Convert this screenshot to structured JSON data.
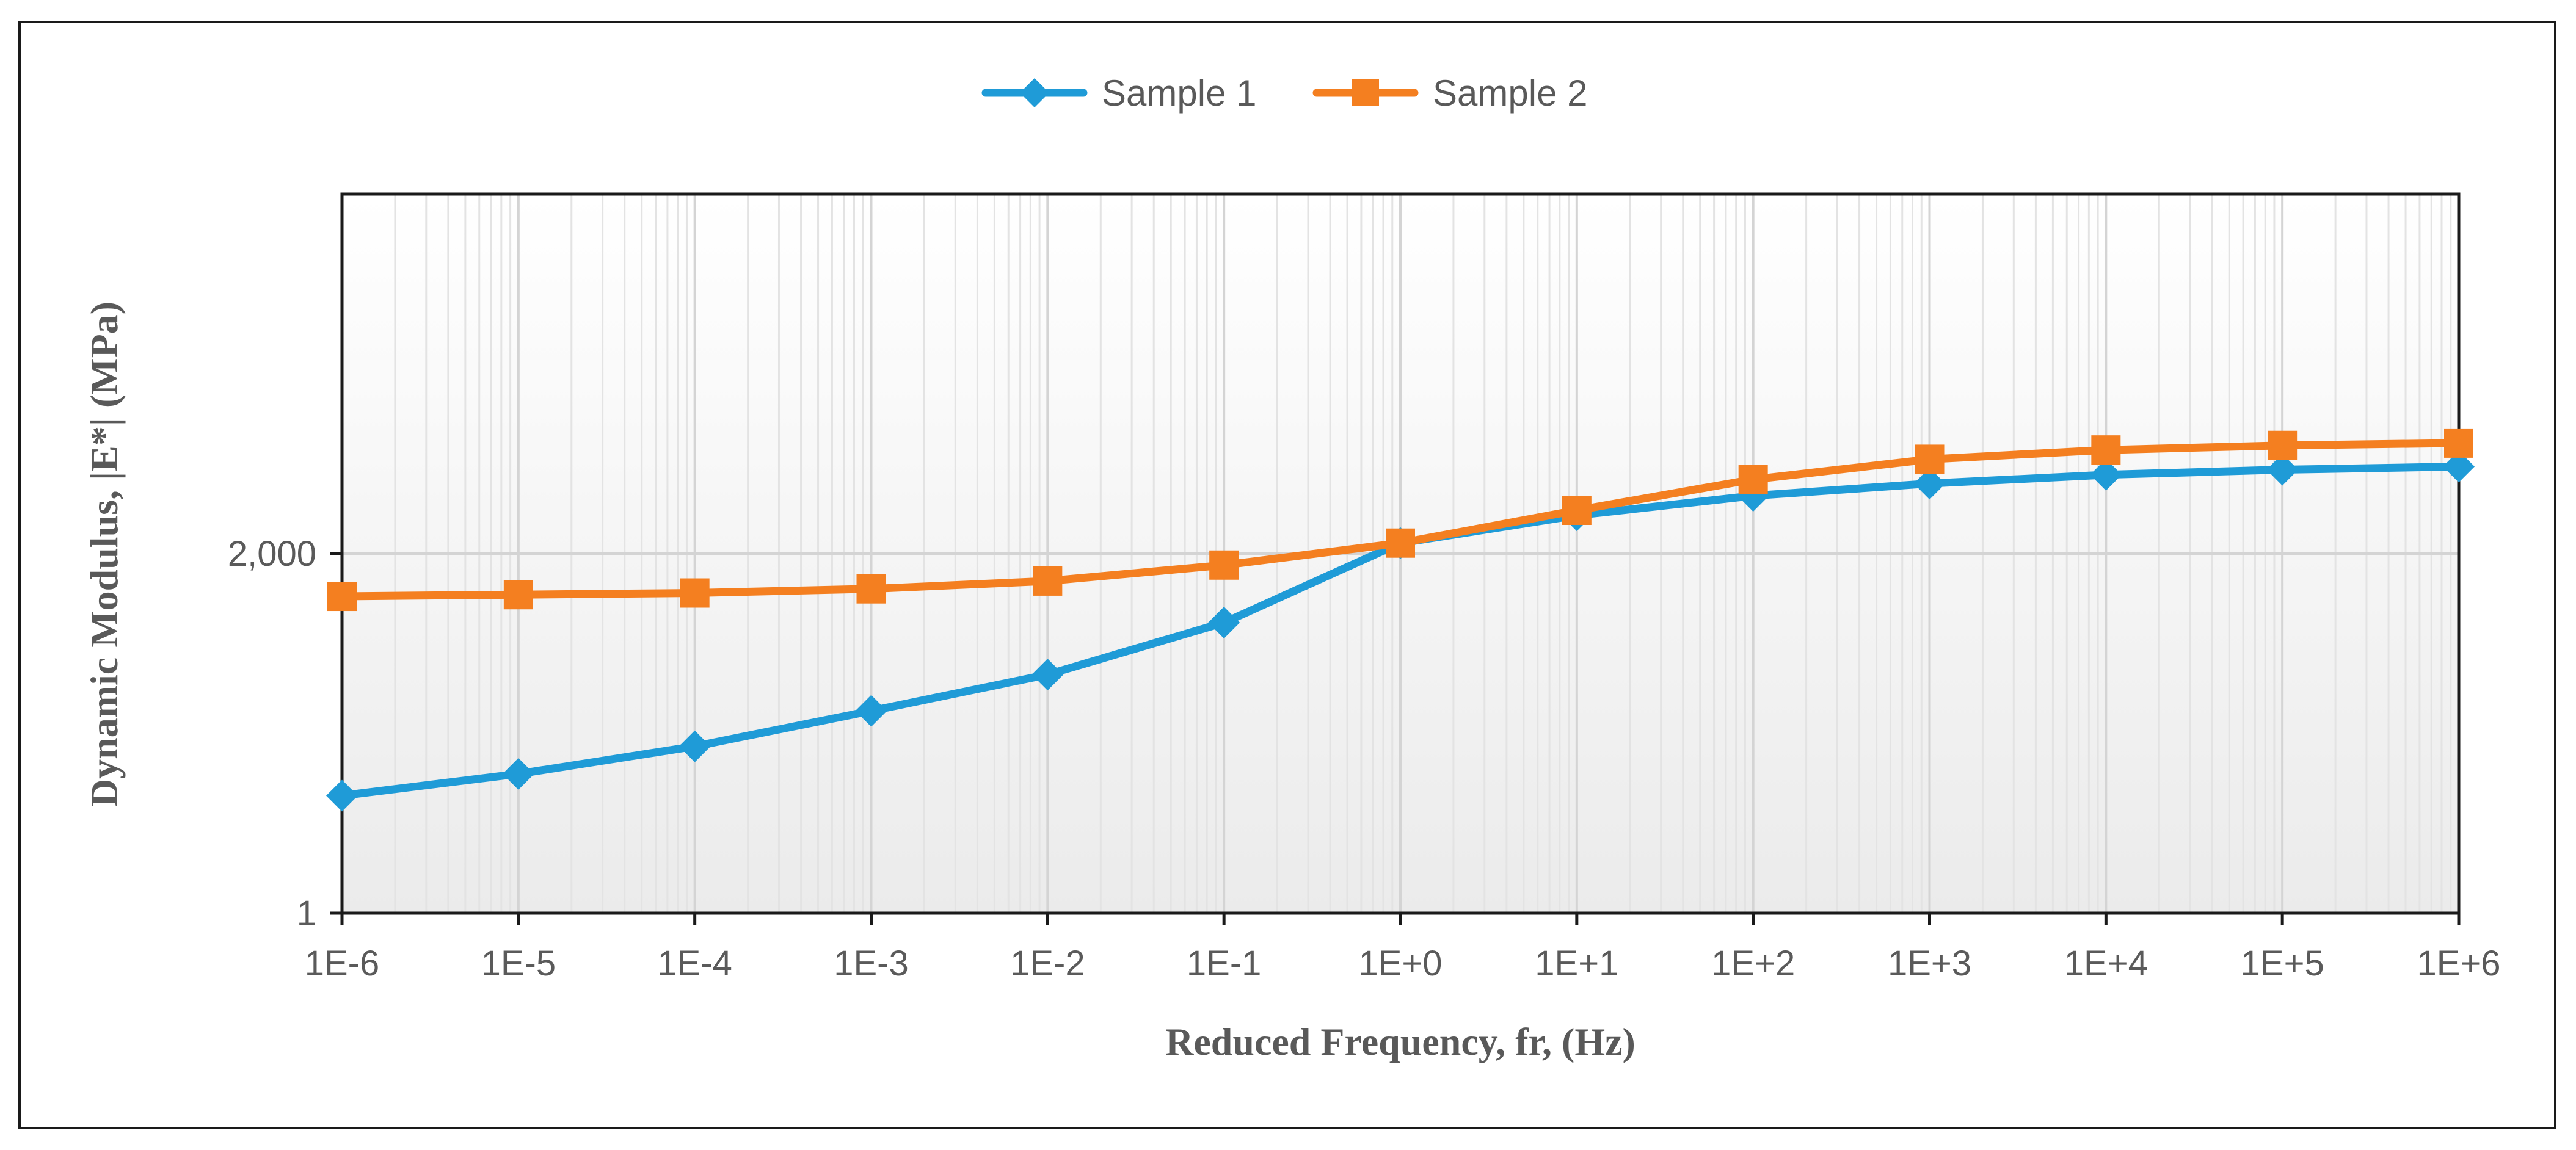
{
  "chart_data": {
    "type": "line",
    "title": "",
    "xlabel": "Reduced Frequency, fr, (Hz)",
    "ylabel": "Dynamic Modulus, |E*|  (MPa)",
    "x_scale": "log",
    "y_scale": "log",
    "x": [
      1e-06,
      1e-05,
      0.0001,
      0.001,
      0.01,
      0.1,
      1,
      10,
      100,
      1000,
      10000,
      100000,
      1000000
    ],
    "x_tick_labels": [
      "1E-6",
      "1E-5",
      "1E-4",
      "1E-3",
      "1E-2",
      "1E-1",
      "1E+0",
      "1E+1",
      "1E+2",
      "1E+3",
      "1E+4",
      "1E+5",
      "1E+6"
    ],
    "xlim": [
      1e-06,
      1000000
    ],
    "ylim": [
      1,
      4000000
    ],
    "y_ticks": [
      1,
      2000
    ],
    "y_tick_labels": [
      "1",
      "2,000"
    ],
    "grid": true,
    "legend_position": "top-center",
    "series": [
      {
        "name": "Sample 1",
        "color": "#1f9bd7",
        "marker": "diamond",
        "values": [
          12,
          19,
          34,
          72,
          155,
          465,
          2500,
          4500,
          6800,
          8800,
          10600,
          11800,
          12600
        ]
      },
      {
        "name": "Sample 2",
        "color": "#f47f20",
        "marker": "square",
        "values": [
          810,
          840,
          870,
          950,
          1120,
          1570,
          2500,
          5000,
          9600,
          14700,
          17900,
          19700,
          20700
        ]
      }
    ]
  }
}
